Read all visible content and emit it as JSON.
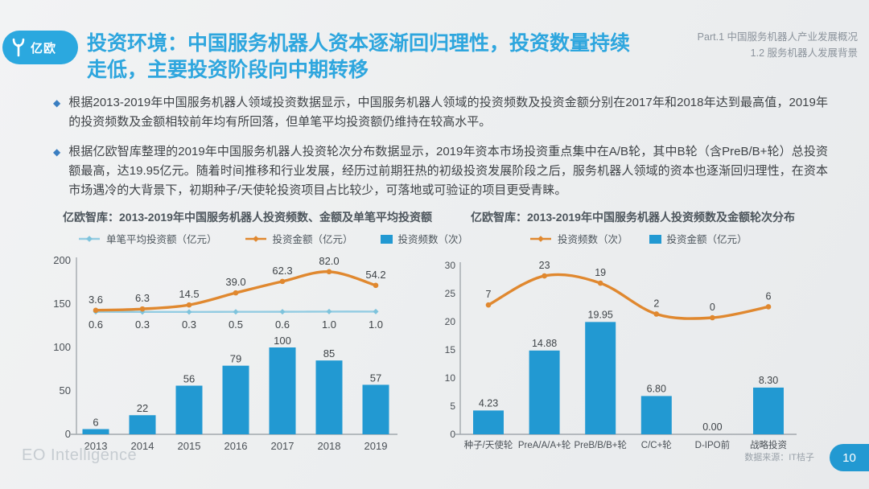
{
  "header": {
    "logo_text": "亿欧",
    "title": "投资环境：中国服务机器人资本逐渐回归理性，投资数量持续走低，主要投资阶段向中期转移",
    "section_line1": "Part.1 中国服务机器人产业发展概况",
    "section_line2": "1.2 服务机器人发展背景"
  },
  "bullets": [
    "根据2013-2019年中国服务机器人领域投资数据显示，中国服务机器人领域的投资频数及投资金额分别在2017年和2018年达到最高值，2019年的投资频数及金额相较前年均有所回落，但单笔平均投资额仍维持在较高水平。",
    "根据亿欧智库整理的2019年中国服务机器人投资轮次分布数据显示，2019年资本市场投资重点集中在A/B轮，其中B轮（含PreB/B+轮）总投资额最高，达19.95亿元。随着时间推移和行业发展，经历过前期狂热的初级投资发展阶段之后，服务机器人领域的资本也逐渐回归理性，在资本市场遇冷的大背景下，初期种子/天使轮投资项目占比较少，可落地或可验证的项目更受青睐。"
  ],
  "chart_data": [
    {
      "type": "bar+line",
      "title": "亿欧智库：2013-2019年中国服务机器人投资频数、金额及单笔平均投资额",
      "categories": [
        "2013",
        "2014",
        "2015",
        "2016",
        "2017",
        "2018",
        "2019"
      ],
      "series": [
        {
          "name": "单笔平均投资额（亿元）",
          "type": "line",
          "color_key": "lightblue",
          "values": [
            0.6,
            0.3,
            0.3,
            0.5,
            0.6,
            1.0,
            1.0
          ],
          "labels": [
            "0.6",
            "0.3",
            "0.3",
            "0.5",
            "0.6",
            "1.0",
            "1.0"
          ]
        },
        {
          "name": "投资金额（亿元）",
          "type": "line",
          "color_key": "orange",
          "values": [
            3.6,
            6.3,
            14.5,
            39.0,
            62.3,
            82.0,
            54.2
          ],
          "labels": [
            "3.6",
            "6.3",
            "14.5",
            "39.0",
            "62.3",
            "82.0",
            "54.2"
          ]
        },
        {
          "name": "投资频数（次）",
          "type": "bar",
          "color_key": "blue",
          "values": [
            6,
            22,
            56,
            79,
            100,
            85,
            57
          ],
          "labels": [
            "6",
            "22",
            "56",
            "79",
            "100",
            "85",
            "57"
          ]
        }
      ],
      "yticks": [
        0,
        50,
        100,
        150,
        200
      ],
      "ylim": [
        0,
        200
      ],
      "grid": false,
      "legend_position": "top"
    },
    {
      "type": "bar+line",
      "title": "亿欧智库：2013-2019年中国服务机器人投资频数及金额轮次分布",
      "categories": [
        "种子/天使轮",
        "PreA/A/A+轮",
        "PreB/B/B+轮",
        "C/C+轮",
        "D-IPO前",
        "战略投资"
      ],
      "series": [
        {
          "name": "投资频数（次）",
          "type": "line",
          "color_key": "orange",
          "values": [
            7,
            23,
            19,
            2,
            0,
            6
          ],
          "labels": [
            "7",
            "23",
            "19",
            "2",
            "0",
            "6"
          ]
        },
        {
          "name": "投资金额（亿元）",
          "type": "bar",
          "color_key": "blue",
          "values": [
            4.23,
            14.88,
            19.95,
            6.8,
            0.0,
            8.3
          ],
          "labels": [
            "4.23",
            "14.88",
            "19.95",
            "6.80",
            "0.00",
            "8.30"
          ]
        }
      ],
      "yticks": [
        0,
        5,
        10,
        15,
        20,
        25,
        30
      ],
      "ylim": [
        0,
        30
      ],
      "grid": false,
      "legend_position": "top"
    }
  ],
  "footer": {
    "watermark": "EO Intelligence",
    "source": "数据来源：IT桔子",
    "page": "10"
  },
  "colors": {
    "blue": "#2299D2",
    "orange": "#E0882F",
    "lightblue": "#93CCE2",
    "lightblue_marker": "#7EC3DC",
    "title_blue": "#2EA6DE",
    "logo_pill": "#2BA8DF",
    "bullet_diamond": "#3A7EC1",
    "axis": "#A2A8AD",
    "label_text": "#3E4347",
    "tick_text": "#4A5056"
  }
}
